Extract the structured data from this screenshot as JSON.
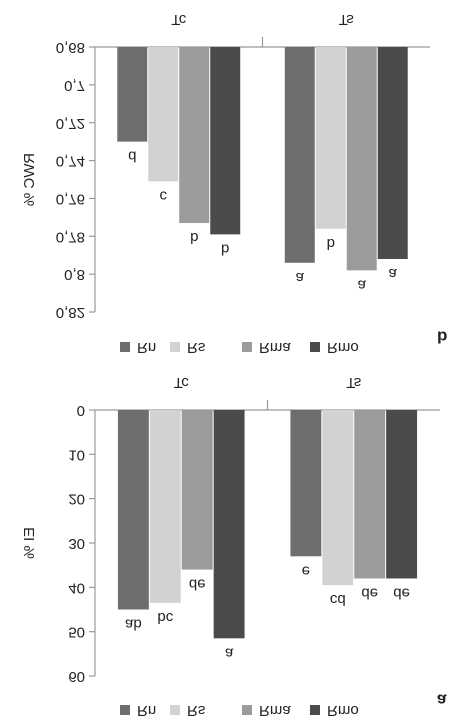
{
  "chart_data": [
    {
      "type": "bar",
      "panel_label": "a",
      "y_label": "EI %",
      "categories": [
        "Tc",
        "Ts"
      ],
      "series": [
        {
          "name": "Rn",
          "color": "#6e6e6e",
          "values": [
            45,
            33
          ],
          "value_labels": [
            "ab",
            "e"
          ]
        },
        {
          "name": "Rs",
          "color": "#d2d2d2",
          "values": [
            43.5,
            39.5
          ],
          "value_labels": [
            "bc",
            "cd"
          ]
        },
        {
          "name": "Rma",
          "color": "#9b9b9b",
          "values": [
            36,
            38
          ],
          "value_labels": [
            "de",
            "de"
          ]
        },
        {
          "name": "Rmo",
          "color": "#4b4b4b",
          "values": [
            51.5,
            38
          ],
          "value_labels": [
            "a",
            "de"
          ]
        }
      ],
      "ylim": [
        0,
        60
      ],
      "yticks": [
        0,
        10,
        20,
        30,
        40,
        50,
        60
      ]
    },
    {
      "type": "bar",
      "panel_label": "b",
      "y_label": "RWC %",
      "categories": [
        "Tc",
        "Ts"
      ],
      "series": [
        {
          "name": "Rn",
          "color": "#6e6e6e",
          "values": [
            0.73,
            0.794
          ],
          "value_labels": [
            "d",
            "a"
          ]
        },
        {
          "name": "Rs",
          "color": "#d2d2d2",
          "values": [
            0.751,
            0.776
          ],
          "value_labels": [
            "c",
            "b"
          ]
        },
        {
          "name": "Rma",
          "color": "#9b9b9b",
          "values": [
            0.773,
            0.798
          ],
          "value_labels": [
            "b",
            "a"
          ]
        },
        {
          "name": "Rmo",
          "color": "#4b4b4b",
          "values": [
            0.779,
            0.792
          ],
          "value_labels": [
            "b",
            "a"
          ]
        }
      ],
      "ylim": [
        0.68,
        0.82
      ],
      "yticks": [
        {
          "value": 0.68,
          "label": "0,68"
        },
        {
          "value": 0.7,
          "label": "0,7"
        },
        {
          "value": 0.72,
          "label": "0,72"
        },
        {
          "value": 0.74,
          "label": "0,74"
        },
        {
          "value": 0.76,
          "label": "0,76"
        },
        {
          "value": 0.78,
          "label": "0,78"
        },
        {
          "value": 0.8,
          "label": "0,8"
        },
        {
          "value": 0.82,
          "label": "0,82"
        }
      ]
    }
  ]
}
